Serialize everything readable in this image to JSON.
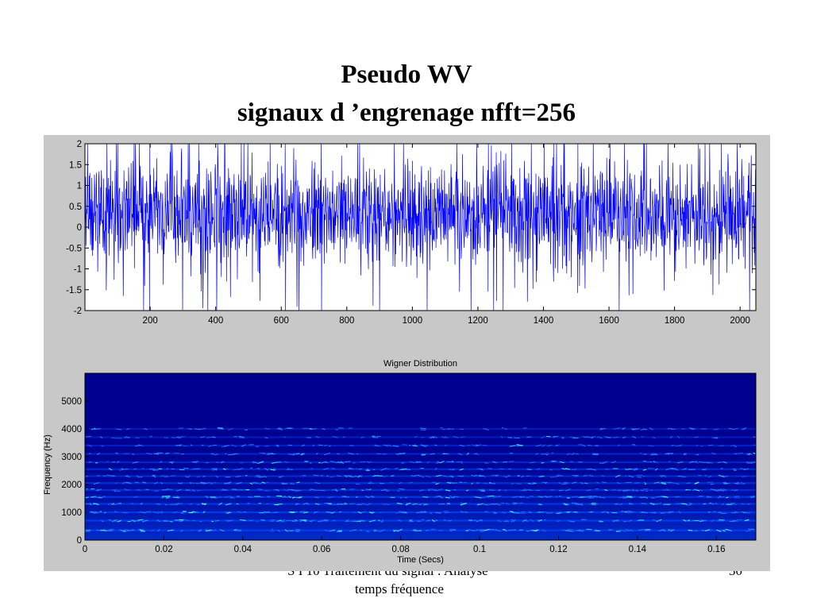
{
  "slide": {
    "title_line1": "Pseudo WV",
    "title_line2": "signaux d ’engrenage nfft=256",
    "footer_course_line1": "S I 10  Traitement du signal : Analyse",
    "footer_course_line2": "temps fréquence",
    "page_number": "30"
  },
  "colors": {
    "signal_line": "#0000ff",
    "plot_background": "#ffffff",
    "figure_background": "#c8c8c8",
    "tfr_low": "#00008f",
    "tfr_mid": "#0040ff",
    "tfr_high": "#40ffff"
  },
  "chart_data": [
    {
      "type": "line",
      "title": "",
      "xlabel": "",
      "ylabel": "",
      "xlim": [
        1,
        2048
      ],
      "ylim": [
        -2,
        2
      ],
      "x_ticks": [
        "200",
        "400",
        "600",
        "800",
        "1000",
        "1200",
        "1400",
        "1600",
        "1800",
        "2000"
      ],
      "y_ticks": [
        "2",
        "1.5",
        "1",
        "0.5",
        "0",
        "-0.5",
        "-1",
        "-1.5",
        "-2"
      ],
      "series": [
        {
          "description_of_samples": "oscillating gear vibration signal of 2048 samples",
          "sample_count": 2048,
          "approx_mean": 0.3,
          "approx_peak_range": [
            -2,
            2
          ]
        }
      ],
      "grid": false
    },
    {
      "type": "heatmap",
      "title": "Wigner Distribution",
      "xlabel": "Time (Secs)",
      "ylabel": "Frequency (Hz)",
      "xlim": [
        0,
        0.17
      ],
      "ylim": [
        0,
        6000
      ],
      "x_ticks": [
        "0",
        "0.02",
        "0.04",
        "0.06",
        "0.08",
        "0.1",
        "0.12",
        "0.14",
        "0.16"
      ],
      "y_ticks": [
        "5000",
        "4000",
        "3000",
        "2000",
        "1000",
        "0"
      ],
      "energy_bands_hz": [
        {
          "freq": 350,
          "level": 0.95
        },
        {
          "freq": 700,
          "level": 0.9
        },
        {
          "freq": 1000,
          "level": 0.85
        },
        {
          "freq": 1300,
          "level": 0.7
        },
        {
          "freq": 1550,
          "level": 0.75
        },
        {
          "freq": 1800,
          "level": 0.55
        },
        {
          "freq": 2050,
          "level": 0.6
        },
        {
          "freq": 2300,
          "level": 0.5
        },
        {
          "freq": 2550,
          "level": 0.45
        },
        {
          "freq": 2800,
          "level": 0.35
        },
        {
          "freq": 3100,
          "level": 0.3
        },
        {
          "freq": 3400,
          "level": 0.22
        },
        {
          "freq": 3700,
          "level": 0.15
        },
        {
          "freq": 4000,
          "level": 0.1
        }
      ]
    }
  ]
}
